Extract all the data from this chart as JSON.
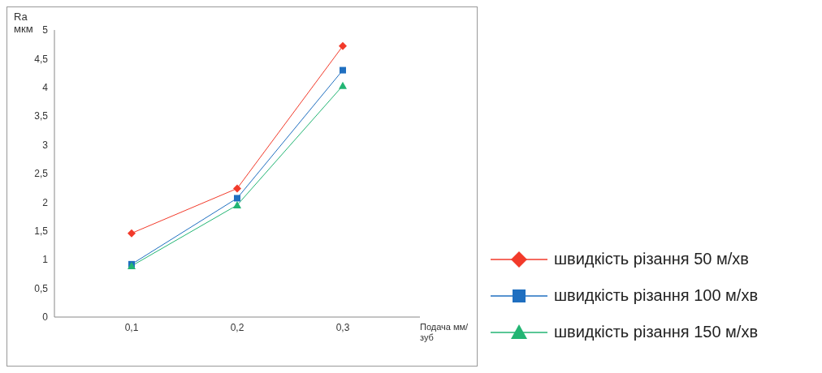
{
  "chart_data": {
    "type": "line",
    "ylabel": "Ra мкм",
    "xlabel": "Подача мм/зуб",
    "categories": [
      "0,1",
      "0,2",
      "0,3"
    ],
    "series": [
      {
        "name": "швидкість різання 50 м/хв",
        "color": "#f23a2a",
        "marker": "diamond",
        "values": [
          1.46,
          2.24,
          4.72
        ]
      },
      {
        "name": "швидкість різання 100 м/хв",
        "color": "#1f6fc0",
        "marker": "square",
        "values": [
          0.92,
          2.07,
          4.3
        ]
      },
      {
        "name": "швидкість різання 150 м/хв",
        "color": "#22b573",
        "marker": "triangle",
        "values": [
          0.89,
          1.95,
          4.03
        ]
      }
    ],
    "ylim": [
      0,
      5
    ],
    "yticks": [
      0,
      {
        "value": 0.5,
        "label": "0,5"
      },
      1,
      {
        "value": 1.5,
        "label": "1,5"
      },
      2,
      {
        "value": 2.5,
        "label": "2,5"
      },
      3,
      {
        "value": 3.5,
        "label": "3,5"
      },
      4,
      {
        "value": 4.5,
        "label": "4,5"
      },
      5
    ],
    "grid": false,
    "legend": "right"
  }
}
